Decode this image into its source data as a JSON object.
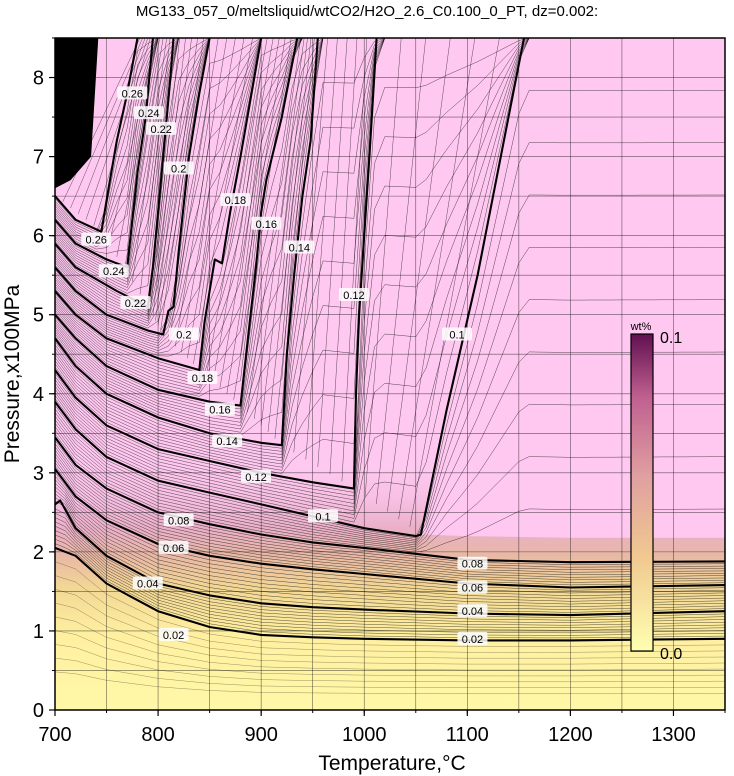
{
  "chart_data": {
    "type": "heatmap",
    "title": "MG133_057_0/meltsliquid/wtCO2/H2O_2.6_C0.100_0_PT, dz=0.002:",
    "xlabel": "Temperature,°C",
    "ylabel": "Pressure,x100MPa",
    "xlim": [
      700,
      1350
    ],
    "ylim": [
      0,
      8.5
    ],
    "x_ticks": [
      "700",
      "800",
      "900",
      "1000",
      "1100",
      "1200",
      "1300"
    ],
    "y_ticks": [
      "0",
      "1",
      "2",
      "3",
      "4",
      "5",
      "6",
      "7",
      "8"
    ],
    "grid": true,
    "contour_interval": 0.002,
    "colorbar": {
      "unit": "wt%",
      "min_label": "0.0",
      "max_label": "0.1",
      "range": [
        0.0,
        0.1
      ],
      "colors": [
        "#ffffb0",
        "#f0c890",
        "#e0a0a0",
        "#c06090",
        "#601050"
      ],
      "placement": "right"
    },
    "colors": {
      "saturated_region": "#ffc8f0",
      "low_region": "#fff5a8",
      "contour_line": "#000000"
    },
    "contours": [
      {
        "label": "0.02",
        "label_positions": [
          [
            815,
            0.95
          ],
          [
            1105,
            0.9
          ]
        ],
        "points": [
          [
            700,
            2.05
          ],
          [
            720,
            1.95
          ],
          [
            750,
            1.6
          ],
          [
            800,
            1.25
          ],
          [
            850,
            1.05
          ],
          [
            900,
            0.95
          ],
          [
            950,
            0.92
          ],
          [
            1000,
            0.9
          ],
          [
            1100,
            0.88
          ],
          [
            1200,
            0.88
          ],
          [
            1350,
            0.9
          ]
        ]
      },
      {
        "label": "0.04",
        "label_positions": [
          [
            790,
            1.6
          ],
          [
            1105,
            1.25
          ]
        ],
        "points": [
          [
            700,
            2.6
          ],
          [
            705,
            2.65
          ],
          [
            720,
            2.3
          ],
          [
            750,
            1.95
          ],
          [
            800,
            1.6
          ],
          [
            850,
            1.45
          ],
          [
            900,
            1.35
          ],
          [
            950,
            1.3
          ],
          [
            1000,
            1.27
          ],
          [
            1100,
            1.22
          ],
          [
            1200,
            1.2
          ],
          [
            1350,
            1.25
          ]
        ]
      },
      {
        "label": "0.06",
        "label_positions": [
          [
            815,
            2.05
          ],
          [
            1105,
            1.55
          ]
        ],
        "points": [
          [
            700,
            3.05
          ],
          [
            720,
            2.7
          ],
          [
            750,
            2.4
          ],
          [
            800,
            2.1
          ],
          [
            850,
            1.95
          ],
          [
            900,
            1.85
          ],
          [
            950,
            1.78
          ],
          [
            1000,
            1.72
          ],
          [
            1100,
            1.6
          ],
          [
            1200,
            1.55
          ],
          [
            1350,
            1.58
          ]
        ]
      },
      {
        "label": "0.08",
        "label_positions": [
          [
            820,
            2.4
          ],
          [
            1105,
            1.85
          ]
        ],
        "points": [
          [
            700,
            3.45
          ],
          [
            720,
            3.1
          ],
          [
            750,
            2.8
          ],
          [
            800,
            2.5
          ],
          [
            850,
            2.35
          ],
          [
            900,
            2.22
          ],
          [
            950,
            2.12
          ],
          [
            1000,
            2.05
          ],
          [
            1100,
            1.9
          ],
          [
            1200,
            1.87
          ],
          [
            1350,
            1.88
          ]
        ]
      },
      {
        "label": "0.1",
        "label_positions": [
          [
            960,
            2.45
          ],
          [
            1090,
            4.75
          ]
        ],
        "points": [
          [
            700,
            3.9
          ],
          [
            720,
            3.55
          ],
          [
            750,
            3.2
          ],
          [
            800,
            2.9
          ],
          [
            850,
            2.75
          ],
          [
            900,
            2.6
          ],
          [
            950,
            2.45
          ],
          [
            1000,
            2.3
          ],
          [
            1050,
            2.2
          ],
          [
            1055,
            2.22
          ],
          [
            1080,
            3.8
          ],
          [
            1110,
            5.5
          ],
          [
            1140,
            7.5
          ],
          [
            1155,
            8.5
          ]
        ]
      },
      {
        "label": "0.12",
        "label_positions": [
          [
            895,
            2.95
          ],
          [
            990,
            5.25
          ]
        ],
        "points": [
          [
            700,
            4.3
          ],
          [
            720,
            3.95
          ],
          [
            750,
            3.6
          ],
          [
            800,
            3.3
          ],
          [
            850,
            3.15
          ],
          [
            900,
            3.0
          ],
          [
            950,
            2.88
          ],
          [
            990,
            2.8
          ],
          [
            992,
            4.0
          ],
          [
            995,
            5.0
          ],
          [
            1000,
            6.0
          ],
          [
            1005,
            7.0
          ],
          [
            1012,
            8.5
          ]
        ]
      },
      {
        "label": "0.14",
        "label_positions": [
          [
            867,
            3.4
          ],
          [
            937,
            5.85
          ]
        ],
        "points": [
          [
            700,
            4.7
          ],
          [
            720,
            4.35
          ],
          [
            750,
            4.0
          ],
          [
            800,
            3.7
          ],
          [
            850,
            3.5
          ],
          [
            900,
            3.38
          ],
          [
            920,
            3.35
          ],
          [
            925,
            4.5
          ],
          [
            932,
            5.5
          ],
          [
            940,
            6.5
          ],
          [
            948,
            7.2
          ],
          [
            955,
            8.5
          ]
        ]
      },
      {
        "label": "0.16",
        "label_positions": [
          [
            860,
            3.8
          ],
          [
            905,
            6.15
          ]
        ],
        "points": [
          [
            700,
            5.0
          ],
          [
            720,
            4.7
          ],
          [
            750,
            4.35
          ],
          [
            800,
            4.05
          ],
          [
            850,
            3.9
          ],
          [
            880,
            3.85
          ],
          [
            888,
            4.8
          ],
          [
            895,
            5.6
          ],
          [
            900,
            6.3
          ],
          [
            905,
            6.7
          ],
          [
            920,
            7.5
          ],
          [
            935,
            8.5
          ]
        ]
      },
      {
        "label": "0.18",
        "label_positions": [
          [
            843,
            4.2
          ],
          [
            875,
            6.45
          ]
        ],
        "points": [
          [
            700,
            5.3
          ],
          [
            720,
            5.0
          ],
          [
            750,
            4.7
          ],
          [
            800,
            4.45
          ],
          [
            840,
            4.3
          ],
          [
            845,
            4.9
          ],
          [
            850,
            5.3
          ],
          [
            855,
            5.7
          ],
          [
            862,
            5.65
          ],
          [
            870,
            6.3
          ],
          [
            880,
            7.0
          ],
          [
            900,
            8.5
          ]
        ]
      },
      {
        "label": "0.2",
        "label_positions": [
          [
            825,
            4.75
          ],
          [
            820,
            6.85
          ]
        ],
        "points": [
          [
            700,
            5.6
          ],
          [
            720,
            5.3
          ],
          [
            750,
            5.0
          ],
          [
            790,
            4.8
          ],
          [
            805,
            4.75
          ],
          [
            810,
            5.05
          ],
          [
            815,
            5.1
          ],
          [
            820,
            5.8
          ],
          [
            825,
            6.4
          ],
          [
            830,
            7.0
          ],
          [
            840,
            7.8
          ],
          [
            850,
            8.5
          ]
        ]
      },
      {
        "label": "0.22",
        "label_positions": [
          [
            778,
            5.15
          ],
          [
            803,
            7.35
          ]
        ],
        "points": [
          [
            700,
            5.9
          ],
          [
            720,
            5.6
          ],
          [
            760,
            5.3
          ],
          [
            790,
            5.1
          ],
          [
            795,
            5.6
          ],
          [
            800,
            6.3
          ],
          [
            805,
            7.0
          ],
          [
            812,
            8.0
          ],
          [
            815,
            8.5
          ]
        ]
      },
      {
        "label": "0.24",
        "label_positions": [
          [
            757,
            5.55
          ],
          [
            791,
            7.55
          ]
        ],
        "points": [
          [
            700,
            6.2
          ],
          [
            720,
            5.9
          ],
          [
            750,
            5.7
          ],
          [
            770,
            5.6
          ],
          [
            775,
            6.2
          ],
          [
            780,
            6.8
          ],
          [
            788,
            7.5
          ],
          [
            795,
            8.5
          ]
        ]
      },
      {
        "label": "0.26",
        "label_positions": [
          [
            740,
            5.95
          ],
          [
            775,
            7.8
          ]
        ],
        "points": [
          [
            700,
            6.5
          ],
          [
            720,
            6.2
          ],
          [
            745,
            6.05
          ],
          [
            752,
            6.6
          ],
          [
            760,
            7.2
          ],
          [
            770,
            7.8
          ],
          [
            780,
            8.5
          ]
        ]
      }
    ]
  }
}
